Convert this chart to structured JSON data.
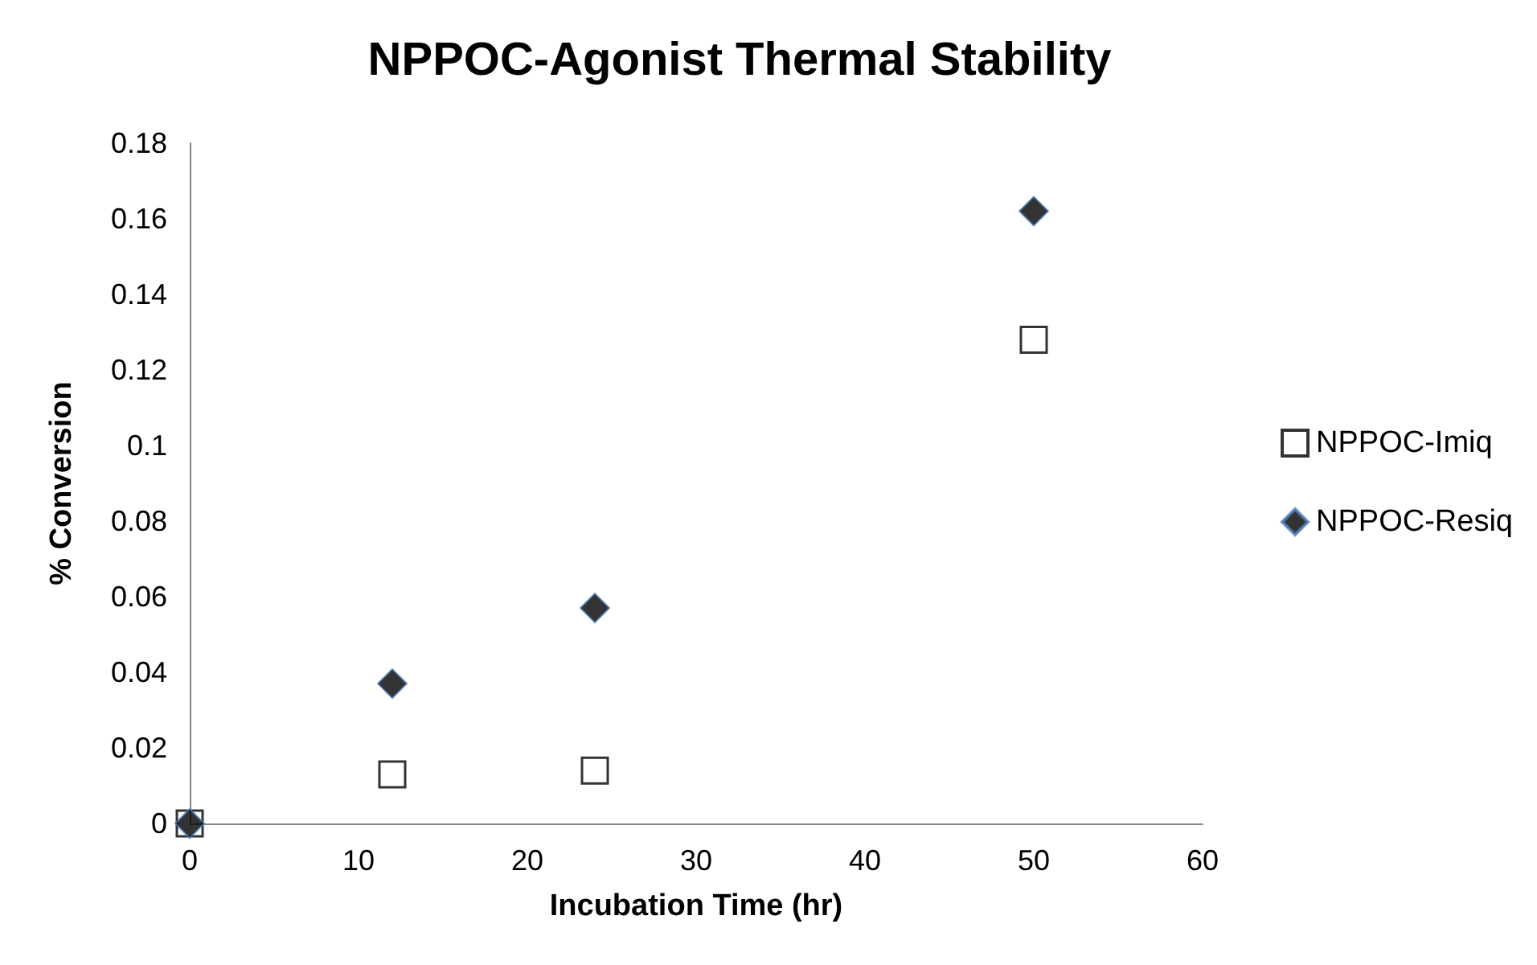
{
  "chart_data": {
    "type": "scatter",
    "title": "NPPOC-Agonist Thermal Stability",
    "xlabel": "Incubation Time (hr)",
    "ylabel": "% Conversion",
    "x": [
      0,
      12,
      24,
      50
    ],
    "series": [
      {
        "name": "NPPOC-Imiq",
        "color": "#000000",
        "marker": "square",
        "values": [
          0,
          0.013,
          0.014,
          0.128
        ]
      },
      {
        "name": "NPPOC-Resiq",
        "color": "#000000",
        "marker": "diamond",
        "values": [
          0,
          0.037,
          0.057,
          0.162
        ]
      }
    ],
    "xlim": [
      0,
      60
    ],
    "xticks": [
      0,
      10,
      20,
      30,
      40,
      50,
      60
    ],
    "ylim": [
      0,
      0.18
    ],
    "yticks": [
      0,
      0.02,
      0.04,
      0.06,
      0.08,
      0.1,
      0.12,
      0.14,
      0.16,
      0.18
    ],
    "grid": false,
    "legend": "right"
  }
}
